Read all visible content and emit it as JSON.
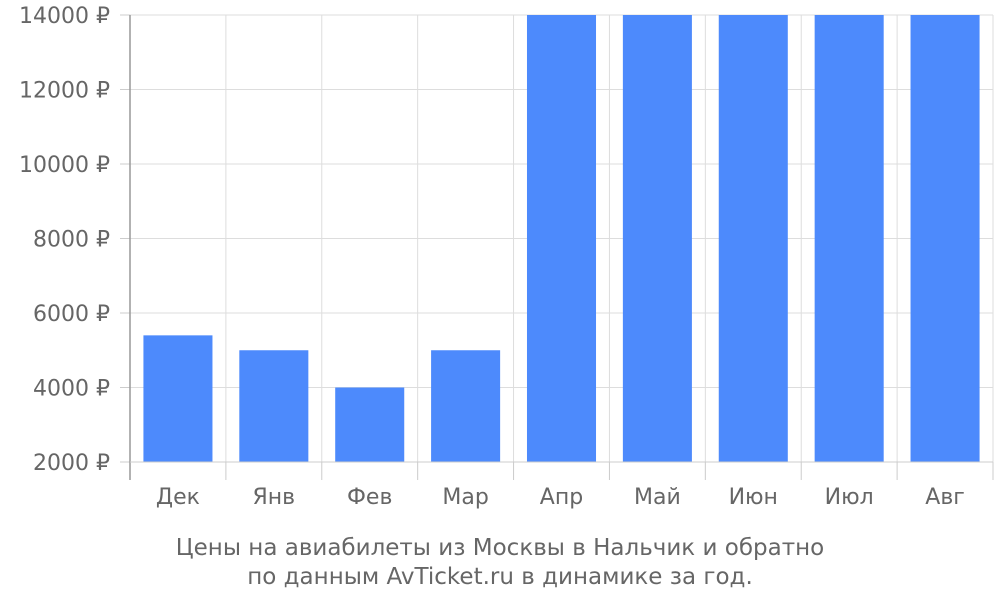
{
  "chart_data": {
    "type": "bar",
    "categories": [
      "Дек",
      "Янв",
      "Фев",
      "Мар",
      "Апр",
      "Май",
      "Июн",
      "Июл",
      "Авг"
    ],
    "values": [
      5400,
      5000,
      4000,
      5000,
      14000,
      14000,
      14000,
      14000,
      14000
    ],
    "ylim": [
      2000,
      14000
    ],
    "yticks": [
      2000,
      4000,
      6000,
      8000,
      10000,
      12000,
      14000
    ],
    "ytick_labels": [
      "2000 ₽",
      "4000 ₽",
      "6000 ₽",
      "8000 ₽",
      "10000 ₽",
      "12000 ₽",
      "14000 ₽"
    ],
    "grid": true,
    "bar_color": "#4d8afc"
  },
  "caption": {
    "line1": "Цены на авиабилеты из Москвы в Нальчик и обратно",
    "line2": "по данным AvTicket.ru в динамике за год."
  }
}
